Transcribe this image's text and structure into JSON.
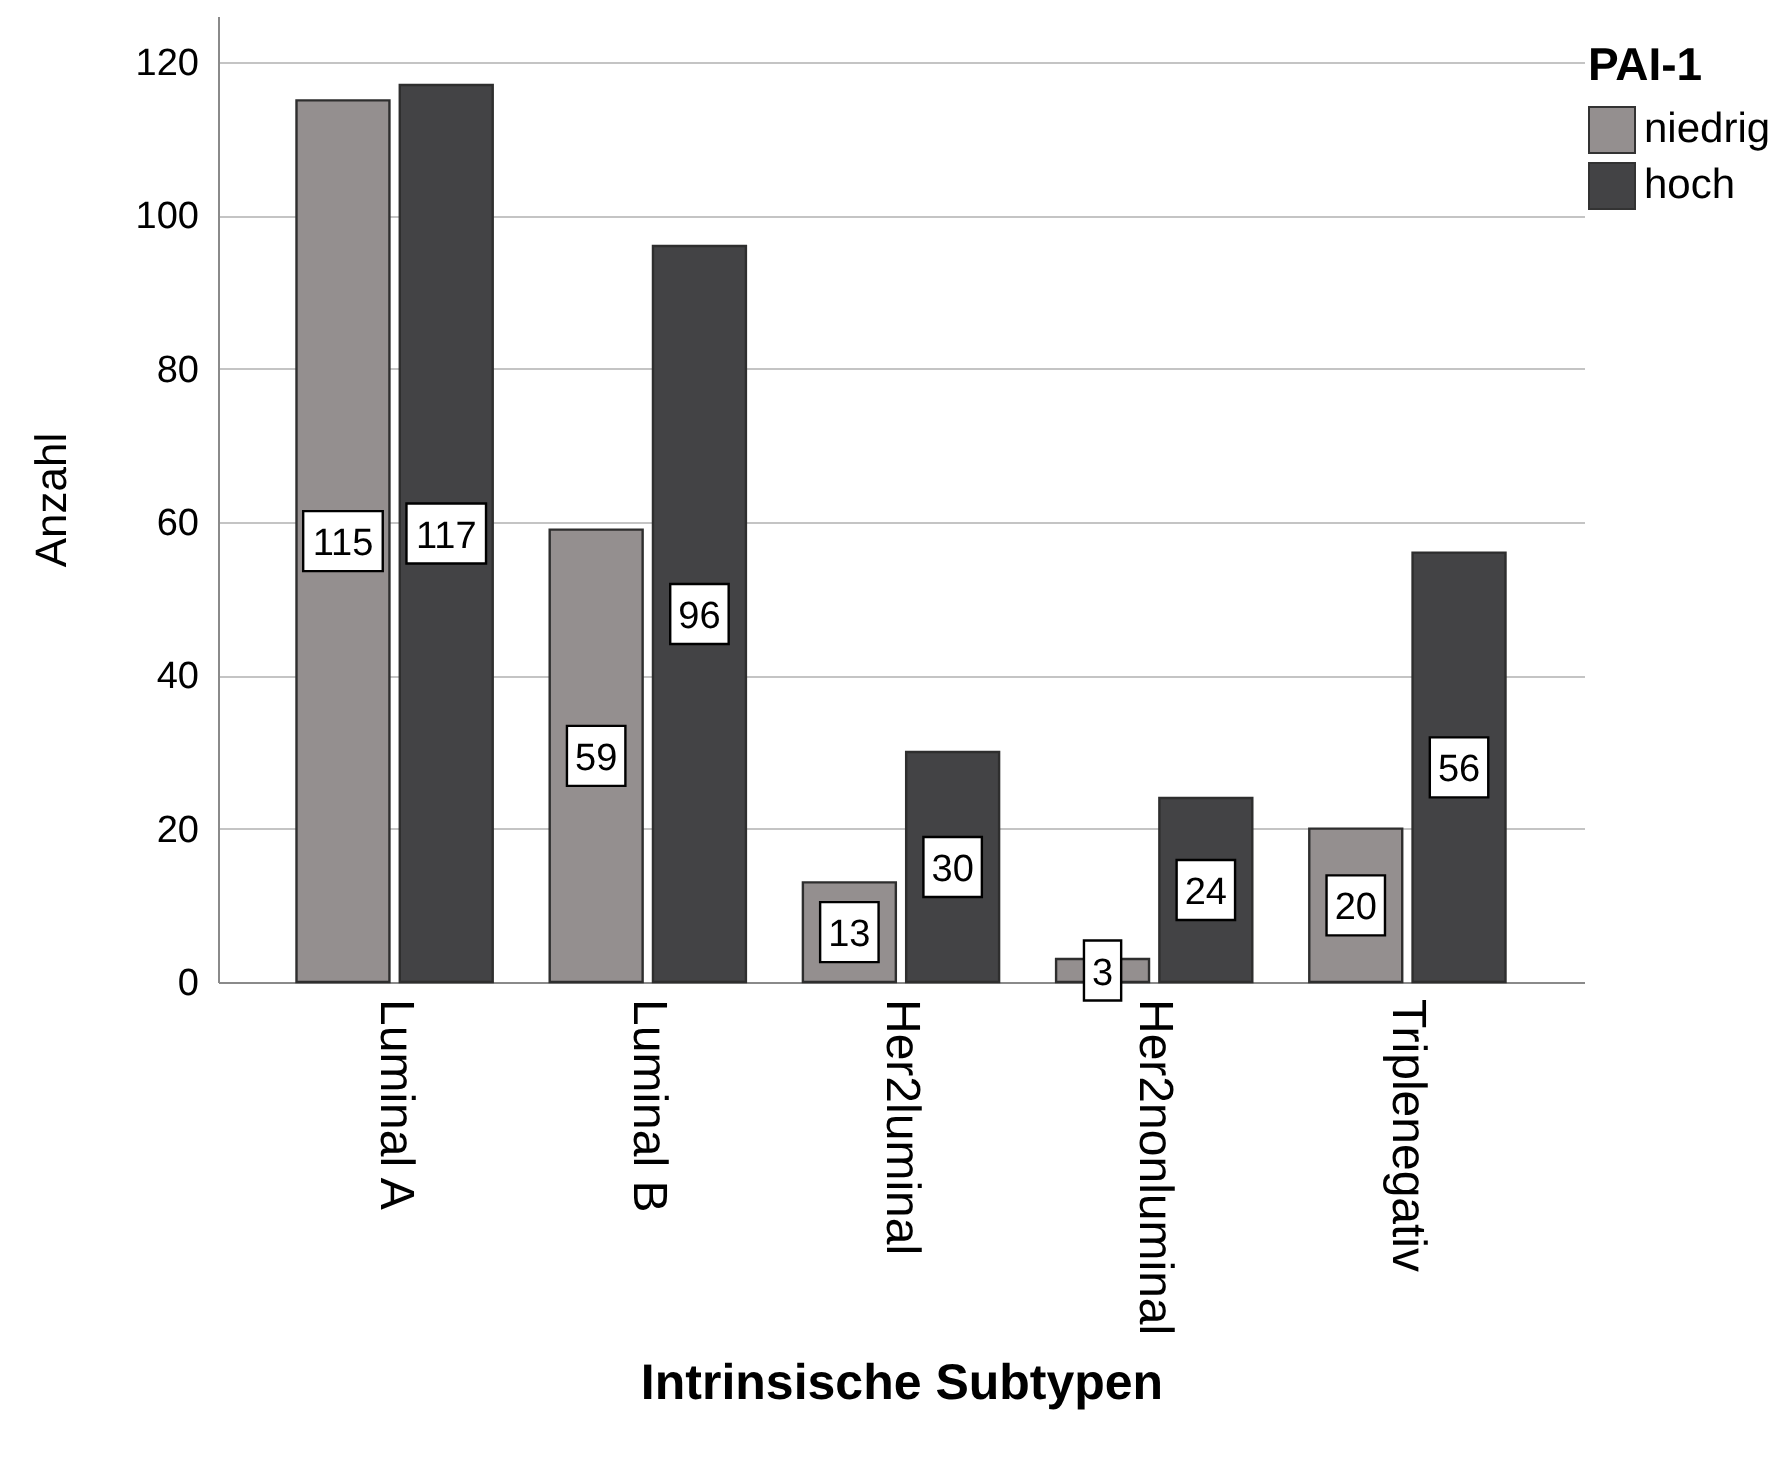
{
  "chart_data": {
    "type": "bar",
    "xlabel": "Intrinsische Subtypen",
    "ylabel": "Anzahl",
    "legend_title": "PAI-1",
    "categories": [
      "Luminal A",
      "Luminal B",
      "Her2luminal",
      "Her2nonluminal",
      "Triplenegativ"
    ],
    "series": [
      {
        "name": "niedrig",
        "color": "#948f8f",
        "values": [
          115,
          59,
          13,
          3,
          20
        ]
      },
      {
        "name": "hoch",
        "color": "#434345",
        "values": [
          117,
          96,
          30,
          24,
          56
        ]
      }
    ],
    "ylim": [
      0,
      126
    ],
    "yticks": [
      0,
      20,
      40,
      60,
      80,
      100,
      120
    ],
    "grid": "y",
    "legend": "top right",
    "data_labels": true
  }
}
